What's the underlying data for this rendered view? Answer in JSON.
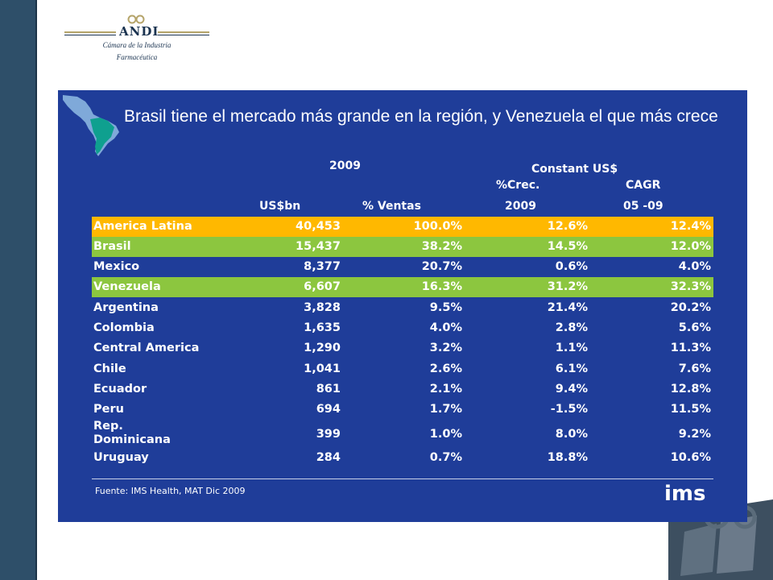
{
  "logo": {
    "name": "ANDI",
    "subtitle_line1": "Cámara de la Industria",
    "subtitle_line2": "Farmacéutica"
  },
  "slide": {
    "title": "Brasil tiene el mercado más grande en la región, y Venezuela el que más crece",
    "headers": {
      "year": "2009",
      "constant": "Constant US$",
      "crec": "%Crec.",
      "cagr": "CAGR",
      "usbn": "US$bn",
      "ventas": "% Ventas",
      "year2": "2009",
      "period": "05 -09"
    },
    "rows": [
      {
        "country": "America Latina",
        "usbn": "40,453",
        "ventas": "100.0%",
        "crec": "12.6%",
        "cagr": "12.4%",
        "highlight": "orange"
      },
      {
        "country": "Brasil",
        "usbn": "15,437",
        "ventas": "38.2%",
        "crec": "14.5%",
        "cagr": "12.0%",
        "highlight": "green"
      },
      {
        "country": "Mexico",
        "usbn": "8,377",
        "ventas": "20.7%",
        "crec": "0.6%",
        "cagr": "4.0%",
        "highlight": "none"
      },
      {
        "country": "Venezuela",
        "usbn": "6,607",
        "ventas": "16.3%",
        "crec": "31.2%",
        "cagr": "32.3%",
        "highlight": "green"
      },
      {
        "country": "Argentina",
        "usbn": "3,828",
        "ventas": "9.5%",
        "crec": "21.4%",
        "cagr": "20.2%",
        "highlight": "none"
      },
      {
        "country": "Colombia",
        "usbn": "1,635",
        "ventas": "4.0%",
        "crec": "2.8%",
        "cagr": "5.6%",
        "highlight": "none"
      },
      {
        "country": "Central America",
        "usbn": "1,290",
        "ventas": "3.2%",
        "crec": "1.1%",
        "cagr": "11.3%",
        "highlight": "none"
      },
      {
        "country": "Chile",
        "usbn": "1,041",
        "ventas": "2.6%",
        "crec": "6.1%",
        "cagr": "7.6%",
        "highlight": "none"
      },
      {
        "country": "Ecuador",
        "usbn": "861",
        "ventas": "2.1%",
        "crec": "9.4%",
        "cagr": "12.8%",
        "highlight": "none"
      },
      {
        "country": "Peru",
        "usbn": "694",
        "ventas": "1.7%",
        "crec": "-1.5%",
        "cagr": "11.5%",
        "highlight": "none"
      },
      {
        "country": "Rep. Dominicana",
        "usbn": "399",
        "ventas": "1.0%",
        "crec": "8.0%",
        "cagr": "9.2%",
        "highlight": "none"
      },
      {
        "country": "Uruguay",
        "usbn": "284",
        "ventas": "0.7%",
        "crec": "18.8%",
        "cagr": "10.6%",
        "highlight": "none"
      }
    ],
    "source": "Fuente: IMS Health, MAT Dic 2009",
    "brand": "ims"
  },
  "colors": {
    "slide_bg": "#1f3d99",
    "highlight_orange": "#ffb800",
    "highlight_green": "#8cc63f",
    "side_band": "#2e4f69"
  }
}
